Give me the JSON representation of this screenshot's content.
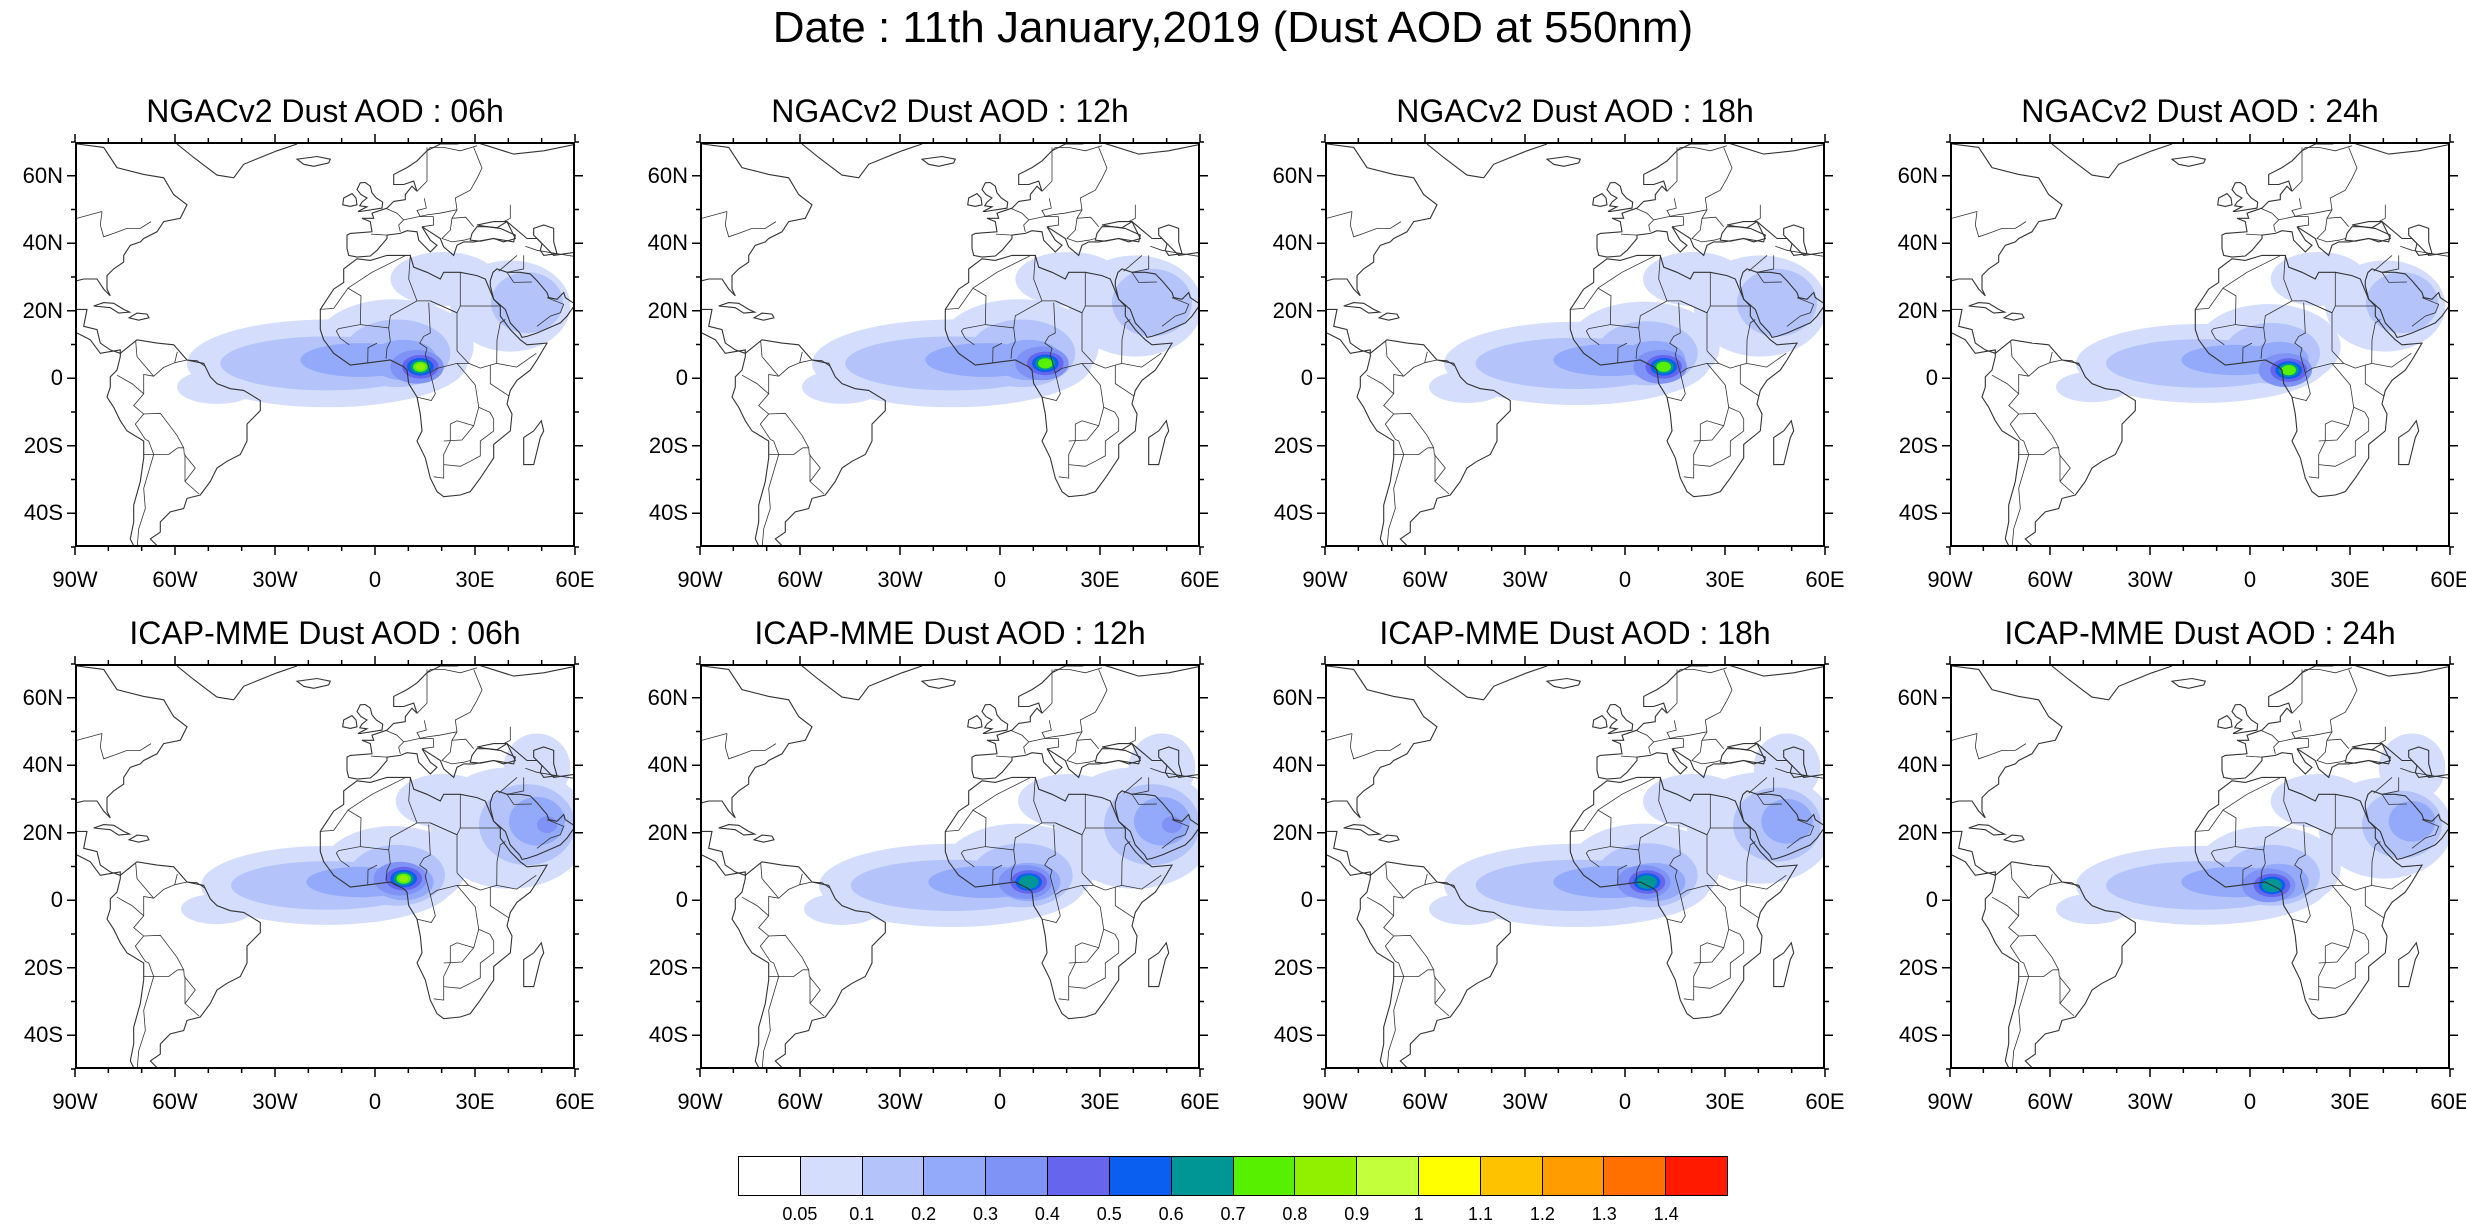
{
  "title": "Date : 11th January,2019 (Dust AOD at 550nm)",
  "panels": [
    {
      "title": "NGACv2 Dust AOD : 06h",
      "model": "NGACv2",
      "hour": "06h",
      "peak": [
        12,
        4
      ],
      "peak_level": 9,
      "spread": 1.0,
      "arabia": 0.9
    },
    {
      "title": "NGACv2 Dust AOD : 12h",
      "model": "NGACv2",
      "hour": "12h",
      "peak": [
        12,
        5
      ],
      "peak_level": 8,
      "spread": 1.0,
      "arabia": 1.0
    },
    {
      "title": "NGACv2 Dust AOD : 18h",
      "model": "NGACv2",
      "hour": "18h",
      "peak": [
        10,
        4
      ],
      "peak_level": 8,
      "spread": 0.95,
      "arabia": 1.0
    },
    {
      "title": "NGACv2 Dust AOD : 24h",
      "model": "NGACv2",
      "hour": "24h",
      "peak": [
        10,
        3
      ],
      "peak_level": 8,
      "spread": 0.9,
      "arabia": 0.9
    },
    {
      "title": "ICAP-MME Dust AOD : 06h",
      "model": "ICAP-MME",
      "hour": "06h",
      "peak": [
        7,
        7
      ],
      "peak_level": 9,
      "spread": 0.9,
      "arabia": 1.2
    },
    {
      "title": "ICAP-MME Dust AOD : 12h",
      "model": "ICAP-MME",
      "hour": "12h",
      "peak": [
        7,
        6
      ],
      "peak_level": 7,
      "spread": 0.95,
      "arabia": 1.2
    },
    {
      "title": "ICAP-MME Dust AOD : 18h",
      "model": "ICAP-MME",
      "hour": "18h",
      "peak": [
        5,
        6
      ],
      "peak_level": 7,
      "spread": 0.95,
      "arabia": 1.1
    },
    {
      "title": "ICAP-MME Dust AOD : 24h",
      "model": "ICAP-MME",
      "hour": "24h",
      "peak": [
        5,
        5
      ],
      "peak_level": 7,
      "spread": 0.9,
      "arabia": 1.0
    }
  ],
  "axes": {
    "lon_range": [
      -90,
      60
    ],
    "lat_range": [
      -50,
      70
    ],
    "x_ticks": [
      -90,
      -60,
      -30,
      0,
      30,
      60
    ],
    "x_labels": [
      "90W",
      "60W",
      "30W",
      "0",
      "30E",
      "60E"
    ],
    "y_ticks": [
      60,
      40,
      20,
      0,
      -20,
      -40
    ],
    "y_labels": [
      "60N",
      "40N",
      "20N",
      "0",
      "20S",
      "40S"
    ]
  },
  "colorbar": {
    "levels": [
      "0.05",
      "0.1",
      "0.2",
      "0.3",
      "0.4",
      "0.5",
      "0.6",
      "0.7",
      "0.8",
      "0.9",
      "1",
      "1.1",
      "1.2",
      "1.3",
      "1.4"
    ],
    "colors": [
      "#ffffff",
      "#d4defc",
      "#b4c4fb",
      "#93a9fa",
      "#7f92f5",
      "#6566ed",
      "#0b5ff0",
      "#009696",
      "#57f000",
      "#91f000",
      "#c3ff3a",
      "#ffff00",
      "#ffc200",
      "#ff9d00",
      "#ff7000",
      "#ff1a00"
    ]
  }
}
